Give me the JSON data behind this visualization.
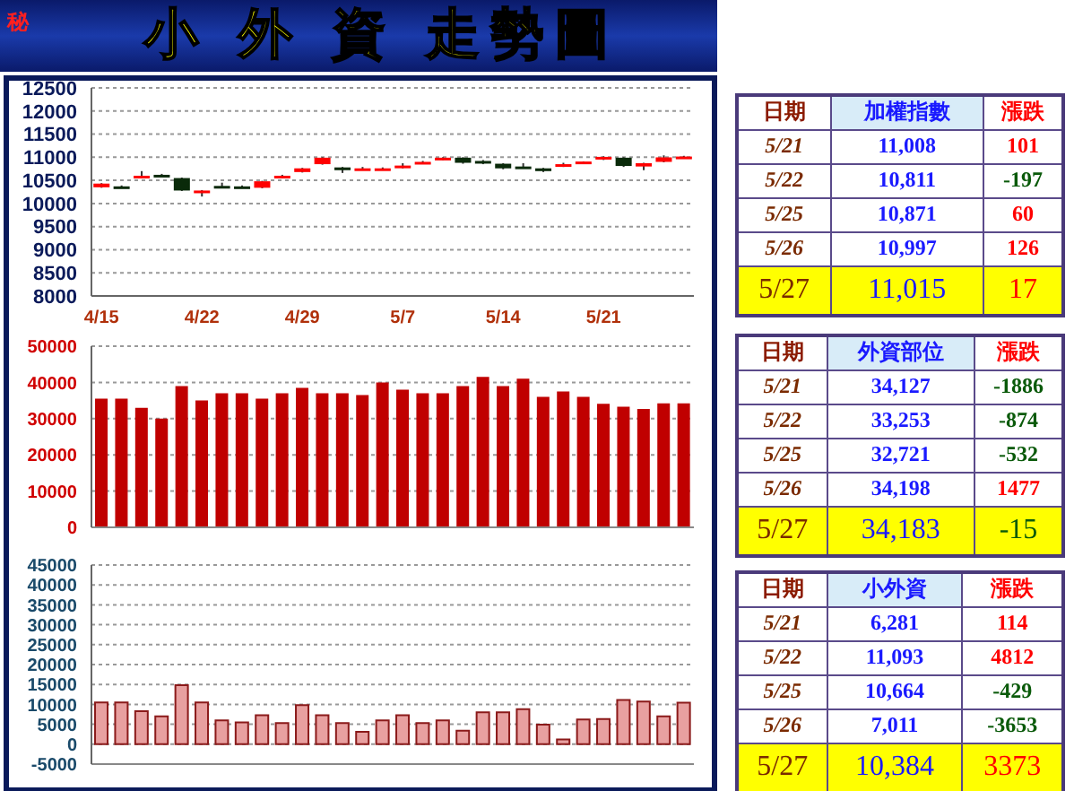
{
  "chart_data": [
    {
      "type": "candlestick",
      "title": "小 外 資 走勢圖",
      "annotations": [
        "秘"
      ],
      "categories": [
        "4/15",
        null,
        null,
        null,
        null,
        "4/22",
        null,
        null,
        null,
        null,
        "4/29",
        null,
        null,
        null,
        null,
        "5/7",
        null,
        null,
        null,
        null,
        "5/14",
        null,
        null,
        null,
        null,
        "5/21",
        null,
        null,
        null,
        null
      ],
      "ohlc": [
        [
          10350,
          10440,
          10340,
          10430
        ],
        [
          10370,
          10390,
          10330,
          10350
        ],
        [
          10560,
          10700,
          10550,
          10600
        ],
        [
          10620,
          10640,
          10580,
          10600
        ],
        [
          10550,
          10560,
          10270,
          10280
        ],
        [
          10260,
          10290,
          10150,
          10280
        ],
        [
          10380,
          10450,
          10340,
          10350
        ],
        [
          10370,
          10390,
          10340,
          10350
        ],
        [
          10340,
          10490,
          10330,
          10480
        ],
        [
          10560,
          10620,
          10550,
          10600
        ],
        [
          10680,
          10770,
          10670,
          10760
        ],
        [
          10850,
          11000,
          10840,
          10990
        ],
        [
          10780,
          10790,
          10660,
          10720
        ],
        [
          10740,
          10790,
          10730,
          10760
        ],
        [
          10740,
          10780,
          10730,
          10760
        ],
        [
          10770,
          10870,
          10760,
          10820
        ],
        [
          10880,
          10920,
          10870,
          10900
        ],
        [
          10950,
          11000,
          10940,
          10990
        ],
        [
          10990,
          11000,
          10860,
          10880
        ],
        [
          10920,
          10940,
          10850,
          10870
        ],
        [
          10860,
          10870,
          10740,
          10760
        ],
        [
          10800,
          10870,
          10760,
          10770
        ],
        [
          10760,
          10770,
          10680,
          10700
        ],
        [
          10800,
          10880,
          10790,
          10850
        ],
        [
          10870,
          10910,
          10860,
          10907
        ],
        [
          10960,
          11020,
          10940,
          11008
        ],
        [
          10990,
          11000,
          10790,
          10811
        ],
        [
          10800,
          10880,
          10720,
          10871
        ],
        [
          10900,
          11040,
          10890,
          10997
        ],
        [
          11000,
          11030,
          10990,
          11015
        ]
      ],
      "colors": [
        "#ff0000",
        "#0a2a0a",
        "#ff0000",
        "#0a2a0a",
        "#0a2a0a",
        "#ff0000",
        "#0a2a0a",
        "#0a2a0a",
        "#ff0000",
        "#ff0000",
        "#ff0000",
        "#ff0000",
        "#0a2a0a",
        "#ff0000",
        "#ff0000",
        "#ff0000",
        "#ff0000",
        "#ff0000",
        "#0a2a0a",
        "#0a2a0a",
        "#0a2a0a",
        "#0a2a0a",
        "#0a2a0a",
        "#ff0000",
        "#ff0000",
        "#ff0000",
        "#0a2a0a",
        "#ff0000",
        "#ff0000",
        "#ff0000"
      ],
      "ylim": [
        8000,
        12500
      ],
      "yticks": [
        8000,
        8500,
        9000,
        9500,
        10000,
        10500,
        11000,
        11500,
        12000,
        12500
      ],
      "grid": "y"
    },
    {
      "type": "bar",
      "tick_labels": "y",
      "categories": [
        null,
        null,
        null,
        null,
        null,
        null,
        null,
        null,
        null,
        null,
        null,
        null,
        null,
        null,
        null,
        null,
        null,
        null,
        null,
        null,
        null,
        null,
        null,
        null,
        null,
        null,
        null,
        null,
        null,
        null
      ],
      "values": [
        35500,
        35500,
        33000,
        30000,
        39000,
        35000,
        37000,
        37000,
        35500,
        37000,
        38500,
        37000,
        37000,
        36500,
        40000,
        38000,
        37000,
        37000,
        39000,
        41500,
        39000,
        41000,
        36000,
        37500,
        36000,
        34100,
        33300,
        32700,
        34200,
        34200
      ],
      "color": "#c00000",
      "ylim": [
        0,
        50000
      ],
      "yticks": [
        0,
        10000,
        20000,
        30000,
        40000,
        50000
      ],
      "grid": "y"
    },
    {
      "type": "bar",
      "tick_labels": "y",
      "categories": [
        null,
        null,
        null,
        null,
        null,
        null,
        null,
        null,
        null,
        null,
        null,
        null,
        null,
        null,
        null,
        null,
        null,
        null,
        null,
        null,
        null,
        null,
        null,
        null,
        null,
        null,
        null,
        null,
        null,
        null
      ],
      "values": [
        10500,
        10500,
        8300,
        7000,
        14800,
        10500,
        6000,
        5500,
        7300,
        5300,
        9800,
        7300,
        5300,
        3100,
        6000,
        7300,
        5300,
        6000,
        3400,
        8000,
        8000,
        8800,
        4900,
        1200,
        6200,
        6300,
        11100,
        10700,
        7000,
        10400
      ],
      "color": "#e8a0a0",
      "ylim": [
        -5000,
        45000
      ],
      "yticks": [
        -5000,
        0,
        5000,
        10000,
        15000,
        20000,
        25000,
        30000,
        35000,
        40000,
        45000
      ],
      "grid": "y"
    },
    {
      "type": "other",
      "categories": [
        "日期",
        "加權指數",
        "漲跌"
      ],
      "y_categories": [
        "5/21",
        "5/22",
        "5/25",
        "5/26",
        "5/27"
      ],
      "cell_labels": [
        [
          "11,008",
          "101"
        ],
        [
          "10,811",
          "-197"
        ],
        [
          "10,871",
          "60"
        ],
        [
          "10,997",
          "126"
        ],
        [
          "11,015",
          "17"
        ]
      ]
    },
    {
      "type": "other",
      "categories": [
        "日期",
        "外資部位",
        "漲跌"
      ],
      "y_categories": [
        "5/21",
        "5/22",
        "5/25",
        "5/26",
        "5/27"
      ],
      "cell_labels": [
        [
          "34,127",
          "-1886"
        ],
        [
          "33,253",
          "-874"
        ],
        [
          "32,721",
          "-532"
        ],
        [
          "34,198",
          "1477"
        ],
        [
          "34,183",
          "-15"
        ]
      ]
    },
    {
      "type": "other",
      "categories": [
        "日期",
        "小外資",
        "漲跌"
      ],
      "y_categories": [
        "5/21",
        "5/22",
        "5/25",
        "5/26",
        "5/27"
      ],
      "cell_labels": [
        [
          "6,281",
          "114"
        ],
        [
          "11,093",
          "4812"
        ],
        [
          "10,664",
          "-429"
        ],
        [
          "7,011",
          "-3653"
        ],
        [
          "10,384",
          "3373"
        ]
      ]
    }
  ]
}
